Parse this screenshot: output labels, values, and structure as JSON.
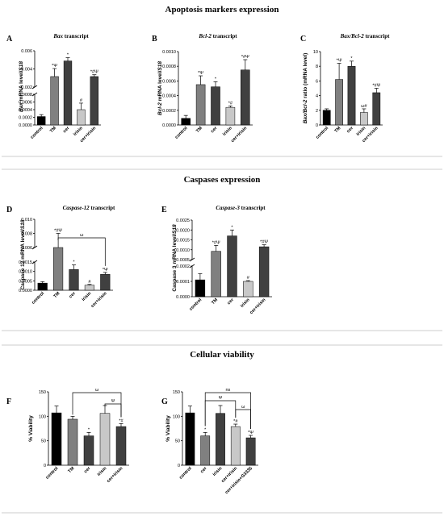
{
  "sections": [
    {
      "title": "Apoptosis markers expression"
    },
    {
      "title": "Caspases expression"
    },
    {
      "title": "Cellular viability"
    }
  ],
  "colors": {
    "black": "#000000",
    "dark_gray": "#404040",
    "gray": "#808080",
    "light_gray": "#c8c8c8"
  },
  "chart_data": [
    {
      "id": "A",
      "type": "bar",
      "title_italic": "Bax",
      "title_rest": " transcript",
      "ylabel_italic": "Bax",
      "ylabel_rest": " mRNA level/",
      "ylabel_italic2": "S18",
      "categories": [
        "control",
        "TM",
        "cer",
        "irisin",
        "cer+irisin"
      ],
      "values": [
        0.00022,
        0.00245,
        0.0046,
        0.0004,
        0.00245
      ],
      "errors": [
        5e-05,
        0.0011,
        0.00045,
        0.00017,
        0.00025
      ],
      "annotations": [
        "",
        "*Ψ",
        "*",
        "#",
        "*#Ψ"
      ],
      "y_axis_break": [
        0.0008,
        0.001
      ],
      "lower_ticks": [
        "0.0000",
        "0.0002",
        "0.0004",
        "0.0006",
        "0.0008"
      ],
      "upper_ticks": [
        "0.002",
        "0.004",
        "0.006"
      ]
    },
    {
      "id": "B",
      "type": "bar",
      "title_italic": "Bcl-2",
      "title_rest": " transcript",
      "ylabel_italic": "Bcl-2",
      "ylabel_rest": " mRNA level/",
      "ylabel_italic2": "S18",
      "categories": [
        "control",
        "TM",
        "cer",
        "irisin",
        "cer+irisin"
      ],
      "values": [
        9e-05,
        0.00055,
        0.00052,
        0.00024,
        0.00075
      ],
      "errors": [
        4e-05,
        0.00012,
        7e-05,
        2e-05,
        0.00014
      ],
      "annotations": [
        "",
        "*Ψ",
        "*",
        "*#",
        "*#Ψ"
      ],
      "ylim": [
        0,
        0.001
      ],
      "ticks": [
        "0.0000",
        "0.0002",
        "0.0004",
        "0.0006",
        "0.0008",
        "0.0010"
      ]
    },
    {
      "id": "C",
      "type": "bar",
      "title_italic": "Bax/Bcl-2",
      "title_rest": " transcript",
      "ylabel_italic": "Bax/Bcl-2",
      "ylabel_rest": " ratio (mRNA level)",
      "ylabel_italic2": "",
      "categories": [
        "control",
        "TM",
        "cer",
        "irisin",
        "cer+irisin"
      ],
      "values": [
        2.0,
        6.2,
        8.0,
        1.7,
        4.4
      ],
      "errors": [
        0.2,
        2.2,
        0.7,
        0.5,
        0.6
      ],
      "annotations": [
        "",
        "*Ψ",
        "*",
        "ω#",
        "*#Ψ"
      ],
      "ylim": [
        0,
        10
      ],
      "ticks": [
        "0",
        "2",
        "4",
        "6",
        "8",
        "10"
      ]
    },
    {
      "id": "D",
      "type": "bar",
      "title_italic": "Caspase-12",
      "title_rest": " transcript",
      "ylabel_italic": "",
      "ylabel_rest": "Caspase 12 mRNA level/",
      "ylabel_italic2": "S18",
      "categories": [
        "control",
        "TM",
        "cer",
        "irisin",
        "cer+irisin"
      ],
      "values": [
        0.00038,
        0.006,
        0.0011,
        0.00027,
        0.00085
      ],
      "errors": [
        8e-05,
        0.002,
        0.00025,
        4e-05,
        0.0001
      ],
      "annotations": [
        "",
        "*#Ψ",
        "*",
        "#",
        "*Ψ"
      ],
      "bracket": {
        "from": 1,
        "to": 4,
        "label": "ω"
      },
      "y_axis_break": [
        0.002,
        0.004
      ],
      "lower_ticks": [
        "0.0000",
        "0.0005",
        "0.0010",
        "0.0015"
      ],
      "upper_ticks": [
        "0.006",
        "0.008",
        "0.010"
      ]
    },
    {
      "id": "E",
      "type": "bar",
      "title_italic": "Caspase-3",
      "title_rest": " transcript",
      "ylabel_italic": "",
      "ylabel_rest": "Caspase 3 mRNA level/",
      "ylabel_italic2": "S18",
      "categories": [
        "control",
        "TM",
        "cer",
        "irisin",
        "cer+irisin"
      ],
      "values": [
        0.00011,
        0.00092,
        0.0017,
        0.0001,
        0.00115
      ],
      "errors": [
        4e-05,
        0.0003,
        0.0003,
        5e-06,
        0.0001
      ],
      "annotations": [
        "",
        "*#Ψ",
        "*",
        "#",
        "*#Ψ"
      ],
      "y_axis_break": [
        0.0002,
        0.0005
      ],
      "lower_ticks": [
        "0.0000",
        "0.0001",
        "0.0002"
      ],
      "upper_ticks": [
        "0.0005",
        "0.0010",
        "0.0015",
        "0.0020",
        "0.0025"
      ]
    },
    {
      "id": "F",
      "type": "bar",
      "ylabel_rest": "% Viability",
      "categories": [
        "control",
        "TM",
        "cer",
        "irisin",
        "cer+irisin"
      ],
      "values": [
        107,
        94,
        60,
        106,
        79
      ],
      "errors": [
        14,
        6,
        7,
        16,
        6
      ],
      "annotations": [
        "",
        "",
        "*",
        "",
        "*#"
      ],
      "brackets": [
        {
          "from": 1,
          "to": 4,
          "label": "ω"
        },
        {
          "from": 3,
          "to": 4,
          "label": "Ψ"
        }
      ],
      "ylim": [
        0,
        150
      ],
      "ticks": [
        "0",
        "50",
        "100",
        "150"
      ]
    },
    {
      "id": "G",
      "type": "bar",
      "ylabel_rest": "% Viability",
      "categories": [
        "control",
        "cer",
        "irisin",
        "cer+irisin",
        "cer+irisin+G3335"
      ],
      "values": [
        107,
        60,
        106,
        79,
        56
      ],
      "errors": [
        14,
        7,
        16,
        5,
        5
      ],
      "annotations": [
        "",
        "*",
        "",
        "*#",
        "*Ψ"
      ],
      "brackets": [
        {
          "from": 1,
          "to": 4,
          "label": "ns"
        },
        {
          "from": 1,
          "to": 3,
          "label": "Ψ"
        },
        {
          "from": 3,
          "to": 4,
          "label": "ω"
        }
      ],
      "ylim": [
        0,
        150
      ],
      "ticks": [
        "0",
        "50",
        "100",
        "150"
      ]
    }
  ]
}
